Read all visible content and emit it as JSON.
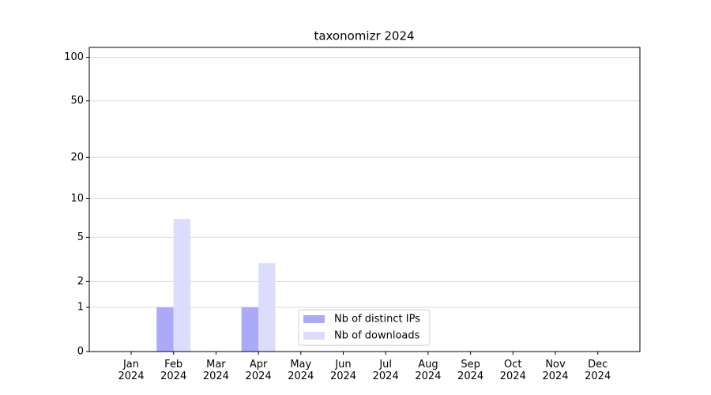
{
  "chart_data": {
    "type": "bar",
    "title": "taxonomizr 2024",
    "categories": [
      "Jan\n2024",
      "Feb\n2024",
      "Mar\n2024",
      "Apr\n2024",
      "May\n2024",
      "Jun\n2024",
      "Jul\n2024",
      "Aug\n2024",
      "Sep\n2024",
      "Oct\n2024",
      "Nov\n2024",
      "Dec\n2024"
    ],
    "series": [
      {
        "name": "Nb of distinct IPs",
        "color": "#aaaaf8",
        "values": [
          0,
          1,
          0,
          1,
          0,
          0,
          0,
          0,
          0,
          0,
          0,
          0
        ]
      },
      {
        "name": "Nb of downloads",
        "color": "#dcdcfc",
        "values": [
          0,
          7,
          0,
          3,
          0,
          0,
          0,
          0,
          0,
          0,
          0,
          0
        ]
      }
    ],
    "yscale": "log1p",
    "ylim": [
      0,
      117
    ],
    "yticks": [
      0,
      1,
      2,
      5,
      10,
      20,
      50,
      100
    ],
    "grid": true,
    "legend": "lower center"
  }
}
